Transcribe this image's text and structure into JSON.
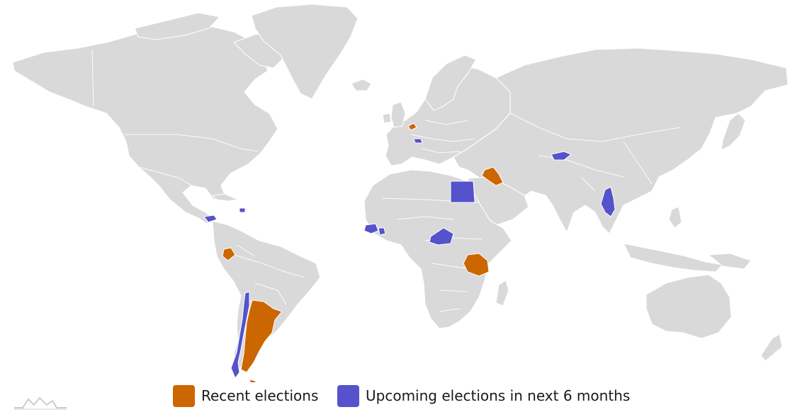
{
  "map": {
    "colors": {
      "land": "#d9d9d9",
      "recent": "#cc6600",
      "upcoming": "#5552cc",
      "border": "#ffffff"
    },
    "recent_countries": [
      "Belgium",
      "Iraq",
      "Ecuador",
      "Tanzania",
      "Argentina"
    ],
    "upcoming_countries": [
      "Switzerland",
      "Egypt",
      "Kyrgyzstan",
      "Myanmar",
      "Honduras",
      "Haiti",
      "Guinea",
      "Sierra Leone",
      "Central African Republic",
      "Chile"
    ]
  },
  "legend": {
    "items": [
      {
        "label": "Recent elections",
        "color": "#cc6600"
      },
      {
        "label": "Upcoming elections in next 6 months",
        "color": "#5552cc"
      }
    ]
  },
  "logo": {
    "icon": "amcharts-logo-icon"
  }
}
